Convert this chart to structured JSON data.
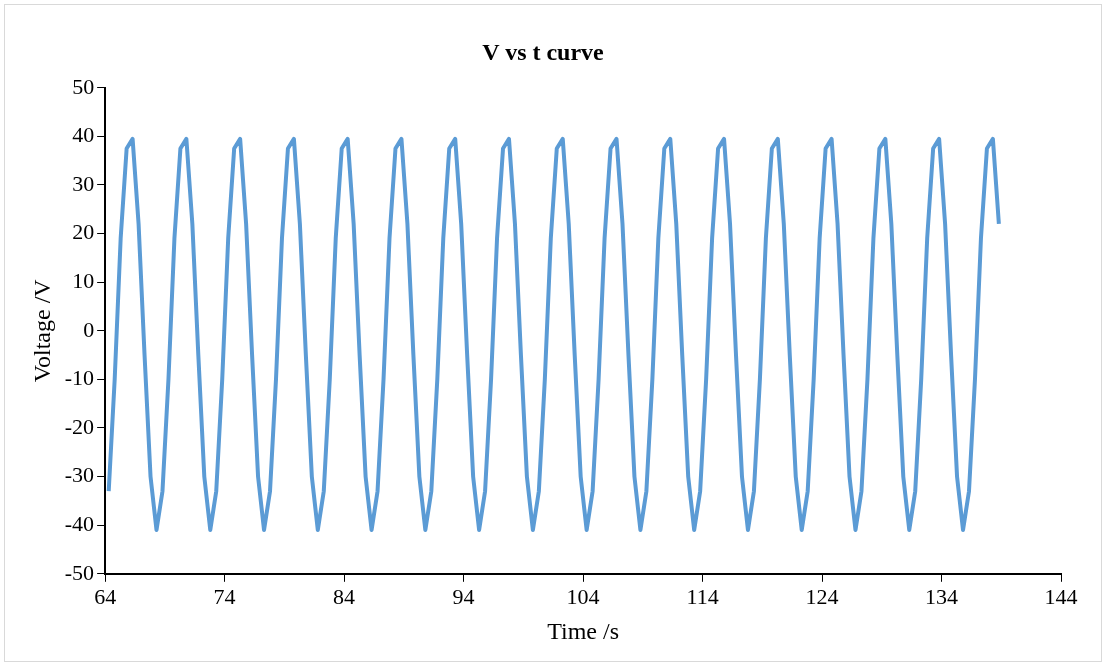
{
  "chart_data": {
    "type": "line",
    "title": "V vs t curve",
    "xlabel": "Time /s",
    "ylabel": "Voltage /V",
    "xlim": [
      64,
      144
    ],
    "xticks": [
      64,
      74,
      84,
      94,
      104,
      114,
      124,
      134,
      144
    ],
    "ylim": [
      -50,
      50
    ],
    "yticks": [
      -50,
      -40,
      -30,
      -20,
      -10,
      0,
      10,
      20,
      30,
      40,
      50
    ],
    "grid": false,
    "legend": false,
    "marker": "none",
    "line_style": "solid",
    "series": [
      {
        "color": "#5b9bd5",
        "x": [
          64.3,
          64.8,
          65.3,
          65.8,
          66.3,
          66.8,
          67.3,
          67.8,
          68.3,
          68.8,
          69.3,
          69.8,
          70.3,
          70.8,
          71.3,
          71.8,
          72.3,
          72.8,
          73.3,
          73.8,
          74.3,
          74.8,
          75.3,
          75.8,
          76.3,
          76.8,
          77.3,
          77.8,
          78.3,
          78.8,
          79.3,
          79.8,
          80.3,
          80.8,
          81.3,
          81.8,
          82.3,
          82.8,
          83.3,
          83.8,
          84.3,
          84.8,
          85.3,
          85.8,
          86.3,
          86.8,
          87.3,
          87.8,
          88.3,
          88.8,
          89.3,
          89.8,
          90.3,
          90.8,
          91.3,
          91.8,
          92.3,
          92.8,
          93.3,
          93.8,
          94.3,
          94.8,
          95.3,
          95.8,
          96.3,
          96.8,
          97.3,
          97.8,
          98.3,
          98.8,
          99.3,
          99.8,
          100.3,
          100.8,
          101.3,
          101.8,
          102.3,
          102.8,
          103.3,
          103.8,
          104.3,
          104.8,
          105.3,
          105.8,
          106.3,
          106.8,
          107.3,
          107.8,
          108.3,
          108.8,
          109.3,
          109.8,
          110.3,
          110.8,
          111.3,
          111.8,
          112.3,
          112.8,
          113.3,
          113.8,
          114.3,
          114.8,
          115.3,
          115.8,
          116.3,
          116.8,
          117.3,
          117.8,
          118.3,
          118.8,
          119.3,
          119.8,
          120.3,
          120.8,
          121.3,
          121.8,
          122.3,
          122.8,
          123.3,
          123.8,
          124.3,
          124.8,
          125.3,
          125.8,
          126.3,
          126.8,
          127.3,
          127.8,
          128.3,
          128.8,
          129.3,
          129.8,
          130.3,
          130.8,
          131.3,
          131.8,
          132.3,
          132.8,
          133.3,
          133.8,
          134.3,
          134.8,
          135.3,
          135.8,
          136.3,
          136.8,
          137.3,
          137.8,
          138.3,
          138.8
        ],
        "values": [
          -33,
          -10,
          19,
          37.5,
          39.5,
          22,
          -5,
          -30,
          -41,
          -33,
          -10,
          19,
          37.5,
          39.5,
          22,
          -5,
          -30,
          -41,
          -33,
          -10,
          19,
          37.5,
          39.5,
          22,
          -5,
          -30,
          -41,
          -33,
          -10,
          19,
          37.5,
          39.5,
          22,
          -5,
          -30,
          -41,
          -33,
          -10,
          19,
          37.5,
          39.5,
          22,
          -5,
          -30,
          -41,
          -33,
          -10,
          19,
          37.5,
          39.5,
          22,
          -5,
          -30,
          -41,
          -33,
          -10,
          19,
          37.5,
          39.5,
          22,
          -5,
          -30,
          -41,
          -33,
          -10,
          19,
          37.5,
          39.5,
          22,
          -5,
          -30,
          -41,
          -33,
          -10,
          19,
          37.5,
          39.5,
          22,
          -5,
          -30,
          -41,
          -33,
          -10,
          19,
          37.5,
          39.5,
          22,
          -5,
          -30,
          -41,
          -33,
          -10,
          19,
          37.5,
          39.5,
          22,
          -5,
          -30,
          -41,
          -33,
          -10,
          19,
          37.5,
          39.5,
          22,
          -5,
          -30,
          -41,
          -33,
          -10,
          19,
          37.5,
          39.5,
          22,
          -5,
          -30,
          -41,
          -33,
          -10,
          19,
          37.5,
          39.5,
          22,
          -5,
          -30,
          -41,
          -33,
          -10,
          19,
          37.5,
          39.5,
          22,
          -5,
          -30,
          -41,
          -33,
          -10,
          19,
          37.5,
          39.5,
          22,
          -5,
          -30,
          -41,
          -33,
          -10,
          19,
          37.5,
          39.5,
          22
        ]
      }
    ]
  }
}
